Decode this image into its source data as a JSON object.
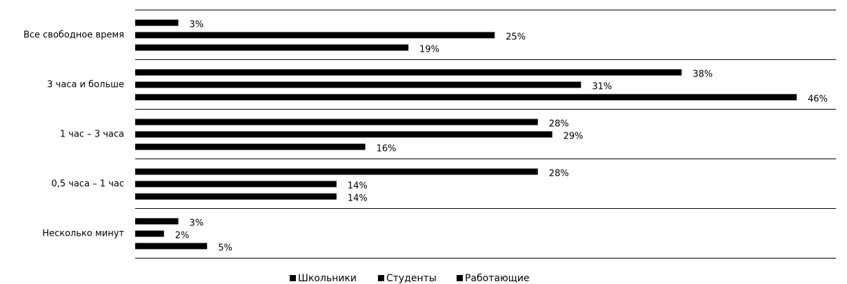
{
  "chart_data": {
    "type": "bar",
    "orientation": "horizontal",
    "categories": [
      "Все свободное время",
      "3 часа и больше",
      "1 час – 3 часа",
      "0,5 часа – 1 час",
      "Несколько минут"
    ],
    "series": [
      {
        "name": "Школьники",
        "color": "#000000",
        "values": [
          3,
          38,
          28,
          28,
          3
        ],
        "value_labels": [
          "3%",
          "38%",
          "28%",
          "28%",
          "3%"
        ]
      },
      {
        "name": "Студенты",
        "color": "#000000",
        "values": [
          25,
          31,
          29,
          14,
          2
        ],
        "value_labels": [
          "25%",
          "31%",
          "29%",
          "14%",
          "2%"
        ]
      },
      {
        "name": "Работающие",
        "color": "#000000",
        "values": [
          19,
          46,
          16,
          14,
          5
        ],
        "value_labels": [
          "19%",
          "46%",
          "16%",
          "14%",
          "5%"
        ]
      }
    ],
    "legend": "bottom"
  }
}
